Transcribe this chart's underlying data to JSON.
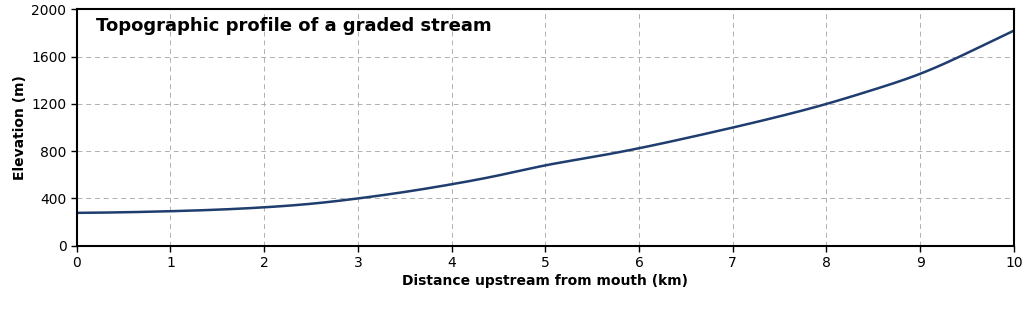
{
  "title": "Topographic profile of a graded stream",
  "xlabel": "Distance upstream from mouth (km)",
  "ylabel": "Elevation (m)",
  "xlim": [
    0,
    10
  ],
  "ylim": [
    0,
    2000
  ],
  "xticks": [
    0,
    1,
    2,
    3,
    4,
    5,
    6,
    7,
    8,
    9,
    10
  ],
  "yticks": [
    0,
    400,
    800,
    1200,
    1600,
    2000
  ],
  "line_color": "#1f3d6e",
  "line_width": 1.8,
  "background_color": "#ffffff",
  "grid_color": "#b0b0b0",
  "title_fontsize": 13,
  "label_fontsize": 10,
  "tick_fontsize": 10,
  "x_data": [
    0,
    0.5,
    1.0,
    1.5,
    2.0,
    2.5,
    3.0,
    3.5,
    4.0,
    4.5,
    5.0,
    5.5,
    6.0,
    6.5,
    7.0,
    7.5,
    8.0,
    8.5,
    9.0,
    9.5,
    10.0
  ],
  "y_data": [
    278,
    283,
    292,
    305,
    325,
    355,
    400,
    455,
    520,
    595,
    680,
    750,
    825,
    910,
    1000,
    1095,
    1200,
    1320,
    1455,
    1630,
    1820
  ]
}
